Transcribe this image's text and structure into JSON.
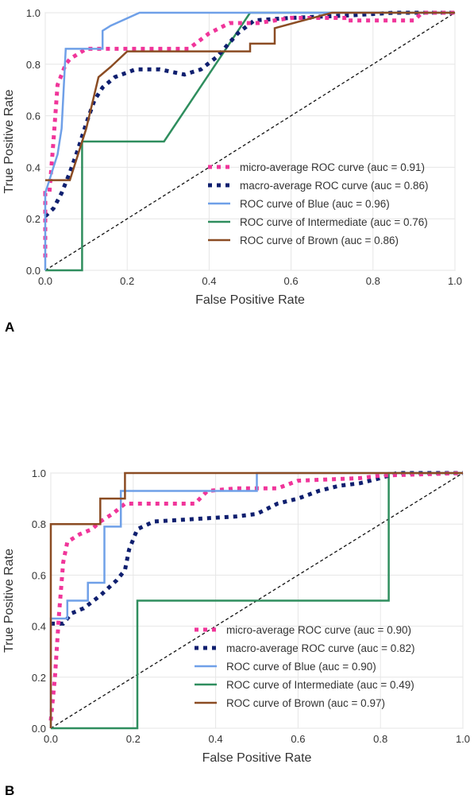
{
  "panels": [
    {
      "label": "A",
      "chart_data": {
        "type": "line",
        "title": "",
        "xlabel": "False Positive Rate",
        "ylabel": "True Positive Rate",
        "xlim": [
          0,
          1
        ],
        "ylim": [
          0,
          1
        ],
        "xticks": [
          "0.0",
          "0.2",
          "0.4",
          "0.6",
          "0.8",
          "1.0"
        ],
        "yticks": [
          "0.0",
          "0.2",
          "0.4",
          "0.6",
          "0.8",
          "1.0"
        ],
        "grid": true,
        "legend_position": "lower-right",
        "series": [
          {
            "name": "micro-average ROC curve (auc = 0.91)",
            "color": "#f0359a",
            "style": "dotted",
            "points": [
              [
                0,
                0.05
              ],
              [
                0,
                0.3
              ],
              [
                0.01,
                0.3
              ],
              [
                0.02,
                0.5
              ],
              [
                0.03,
                0.72
              ],
              [
                0.04,
                0.76
              ],
              [
                0.05,
                0.8
              ],
              [
                0.06,
                0.82
              ],
              [
                0.08,
                0.84
              ],
              [
                0.1,
                0.86
              ],
              [
                0.2,
                0.86
              ],
              [
                0.35,
                0.86
              ],
              [
                0.4,
                0.92
              ],
              [
                0.45,
                0.96
              ],
              [
                0.52,
                0.96
              ],
              [
                0.6,
                0.98
              ],
              [
                0.73,
                0.98
              ],
              [
                0.73,
                0.97
              ],
              [
                0.9,
                0.97
              ],
              [
                0.92,
                1
              ],
              [
                1,
                1
              ]
            ]
          },
          {
            "name": "macro-average ROC curve (auc = 0.86)",
            "color": "#0f1f6f",
            "style": "dotted",
            "points": [
              [
                0,
                0.21
              ],
              [
                0.02,
                0.24
              ],
              [
                0.04,
                0.3
              ],
              [
                0.06,
                0.38
              ],
              [
                0.08,
                0.47
              ],
              [
                0.1,
                0.57
              ],
              [
                0.12,
                0.66
              ],
              [
                0.14,
                0.71
              ],
              [
                0.17,
                0.75
              ],
              [
                0.22,
                0.78
              ],
              [
                0.28,
                0.78
              ],
              [
                0.34,
                0.76
              ],
              [
                0.38,
                0.78
              ],
              [
                0.42,
                0.83
              ],
              [
                0.47,
                0.92
              ],
              [
                0.51,
                0.97
              ],
              [
                0.6,
                0.98
              ],
              [
                0.75,
                0.99
              ],
              [
                0.85,
                1
              ],
              [
                1,
                1
              ]
            ]
          },
          {
            "name": "ROC curve of Blue (auc = 0.96)",
            "color": "#6fa0e8",
            "style": "solid",
            "points": [
              [
                0,
                0
              ],
              [
                0,
                0.3
              ],
              [
                0.01,
                0.35
              ],
              [
                0.02,
                0.4
              ],
              [
                0.03,
                0.45
              ],
              [
                0.04,
                0.55
              ],
              [
                0.05,
                0.86
              ],
              [
                0.14,
                0.86
              ],
              [
                0.14,
                0.93
              ],
              [
                0.16,
                0.95
              ],
              [
                0.23,
                1
              ],
              [
                1,
                1
              ]
            ]
          },
          {
            "name": "ROC curve of Intermediate (auc = 0.76)",
            "color": "#2f8e5e",
            "style": "solid",
            "points": [
              [
                0,
                0
              ],
              [
                0.09,
                0
              ],
              [
                0.09,
                0.5
              ],
              [
                0.29,
                0.5
              ],
              [
                0.5,
                1
              ],
              [
                1,
                1
              ]
            ]
          },
          {
            "name": "ROC curve of Brown (auc = 0.86)",
            "color": "#8b4c23",
            "style": "solid",
            "points": [
              [
                0,
                0.35
              ],
              [
                0.06,
                0.35
              ],
              [
                0.1,
                0.55
              ],
              [
                0.13,
                0.75
              ],
              [
                0.16,
                0.79
              ],
              [
                0.2,
                0.85
              ],
              [
                0.5,
                0.85
              ],
              [
                0.5,
                0.88
              ],
              [
                0.56,
                0.88
              ],
              [
                0.56,
                0.94
              ],
              [
                0.7,
                1
              ],
              [
                1,
                1
              ]
            ]
          },
          {
            "name": "",
            "color": "#111111",
            "style": "dashed",
            "points": [
              [
                0,
                0
              ],
              [
                1,
                1
              ]
            ]
          }
        ]
      }
    },
    {
      "label": "B",
      "chart_data": {
        "type": "line",
        "title": "",
        "xlabel": "False Positive Rate",
        "ylabel": "True Positive Rate",
        "xlim": [
          0,
          1
        ],
        "ylim": [
          0,
          1
        ],
        "xticks": [
          "0.0",
          "0.2",
          "0.4",
          "0.6",
          "0.8",
          "1.0"
        ],
        "yticks": [
          "0.0",
          "0.2",
          "0.4",
          "0.6",
          "0.8",
          "1.0"
        ],
        "grid": true,
        "legend_position": "lower-right",
        "series": [
          {
            "name": "micro-average ROC curve (auc = 0.90)",
            "color": "#f0359a",
            "style": "dotted",
            "points": [
              [
                0,
                0.03
              ],
              [
                0.01,
                0.2
              ],
              [
                0.02,
                0.45
              ],
              [
                0.03,
                0.65
              ],
              [
                0.04,
                0.73
              ],
              [
                0.07,
                0.76
              ],
              [
                0.1,
                0.78
              ],
              [
                0.12,
                0.81
              ],
              [
                0.15,
                0.84
              ],
              [
                0.18,
                0.88
              ],
              [
                0.35,
                0.88
              ],
              [
                0.38,
                0.93
              ],
              [
                0.45,
                0.94
              ],
              [
                0.55,
                0.94
              ],
              [
                0.6,
                0.97
              ],
              [
                0.75,
                0.98
              ],
              [
                0.8,
                0.99
              ],
              [
                1,
                1
              ]
            ]
          },
          {
            "name": "macro-average ROC curve (auc = 0.82)",
            "color": "#0f1f6f",
            "style": "dotted",
            "points": [
              [
                0,
                0.41
              ],
              [
                0.03,
                0.41
              ],
              [
                0.05,
                0.45
              ],
              [
                0.08,
                0.47
              ],
              [
                0.12,
                0.52
              ],
              [
                0.16,
                0.58
              ],
              [
                0.18,
                0.62
              ],
              [
                0.19,
                0.7
              ],
              [
                0.21,
                0.78
              ],
              [
                0.25,
                0.81
              ],
              [
                0.35,
                0.82
              ],
              [
                0.45,
                0.83
              ],
              [
                0.5,
                0.84
              ],
              [
                0.55,
                0.88
              ],
              [
                0.6,
                0.9
              ],
              [
                0.65,
                0.93
              ],
              [
                0.7,
                0.95
              ],
              [
                0.75,
                0.96
              ],
              [
                0.8,
                0.98
              ],
              [
                0.84,
                1
              ],
              [
                1,
                1
              ]
            ]
          },
          {
            "name": "ROC curve of Blue (auc = 0.90)",
            "color": "#6fa0e8",
            "style": "solid",
            "points": [
              [
                0,
                0
              ],
              [
                0,
                0.43
              ],
              [
                0.04,
                0.43
              ],
              [
                0.04,
                0.5
              ],
              [
                0.09,
                0.5
              ],
              [
                0.09,
                0.57
              ],
              [
                0.13,
                0.57
              ],
              [
                0.13,
                0.79
              ],
              [
                0.17,
                0.79
              ],
              [
                0.17,
                0.93
              ],
              [
                0.5,
                0.93
              ],
              [
                0.5,
                1
              ],
              [
                1,
                1
              ]
            ]
          },
          {
            "name": "ROC curve of Intermediate (auc = 0.49)",
            "color": "#2f8e5e",
            "style": "solid",
            "points": [
              [
                0,
                0
              ],
              [
                0.21,
                0
              ],
              [
                0.21,
                0.5
              ],
              [
                0.82,
                0.5
              ],
              [
                0.82,
                1
              ],
              [
                1,
                1
              ]
            ]
          },
          {
            "name": "ROC curve of Brown (auc = 0.97)",
            "color": "#8b4c23",
            "style": "solid",
            "points": [
              [
                0,
                0
              ],
              [
                0,
                0.8
              ],
              [
                0.12,
                0.8
              ],
              [
                0.12,
                0.9
              ],
              [
                0.18,
                0.9
              ],
              [
                0.18,
                1
              ],
              [
                1,
                1
              ]
            ]
          },
          {
            "name": "",
            "color": "#111111",
            "style": "dashed",
            "points": [
              [
                0,
                0
              ],
              [
                1,
                1
              ]
            ]
          }
        ]
      }
    }
  ]
}
